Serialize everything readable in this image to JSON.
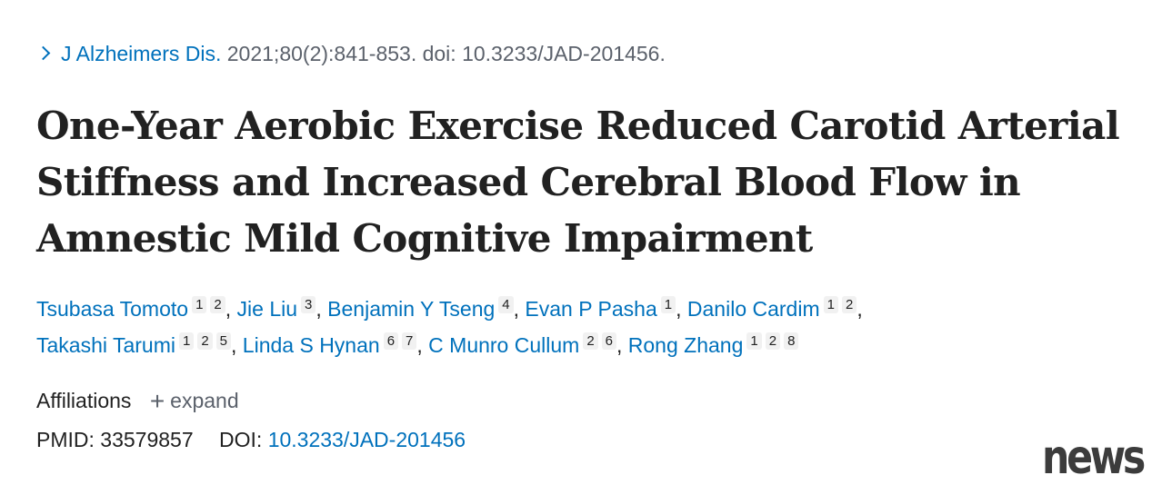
{
  "citation": {
    "journal": "J Alzheimers Dis.",
    "details": "2021;80(2):841-853. doi: 10.3233/JAD-201456."
  },
  "title": "One-Year Aerobic Exercise Reduced Carotid Arterial Stiffness and Increased Cerebral Blood Flow in Amnestic Mild Cognitive Impairment",
  "authors": [
    {
      "name": "Tsubasa Tomoto",
      "affiliations": [
        "1",
        "2"
      ]
    },
    {
      "name": "Jie Liu",
      "affiliations": [
        "3"
      ]
    },
    {
      "name": "Benjamin Y Tseng",
      "affiliations": [
        "4"
      ]
    },
    {
      "name": "Evan P Pasha",
      "affiliations": [
        "1"
      ]
    },
    {
      "name": "Danilo Cardim",
      "affiliations": [
        "1",
        "2"
      ]
    },
    {
      "name": "Takashi Tarumi",
      "affiliations": [
        "1",
        "2",
        "5"
      ]
    },
    {
      "name": "Linda S Hynan",
      "affiliations": [
        "6",
        "7"
      ]
    },
    {
      "name": "C Munro Cullum",
      "affiliations": [
        "2",
        "6"
      ]
    },
    {
      "name": "Rong Zhang",
      "affiliations": [
        "1",
        "2",
        "8"
      ]
    }
  ],
  "affiliations": {
    "label": "Affiliations",
    "expand_label": "expand"
  },
  "ids": {
    "pmid_label": "PMID:",
    "pmid": "33579857",
    "doi_label": "DOI:",
    "doi": "10.3233/JAD-201456"
  },
  "watermark": "news",
  "colors": {
    "link": "#0071bc",
    "text": "#212121",
    "muted": "#5b616b"
  }
}
